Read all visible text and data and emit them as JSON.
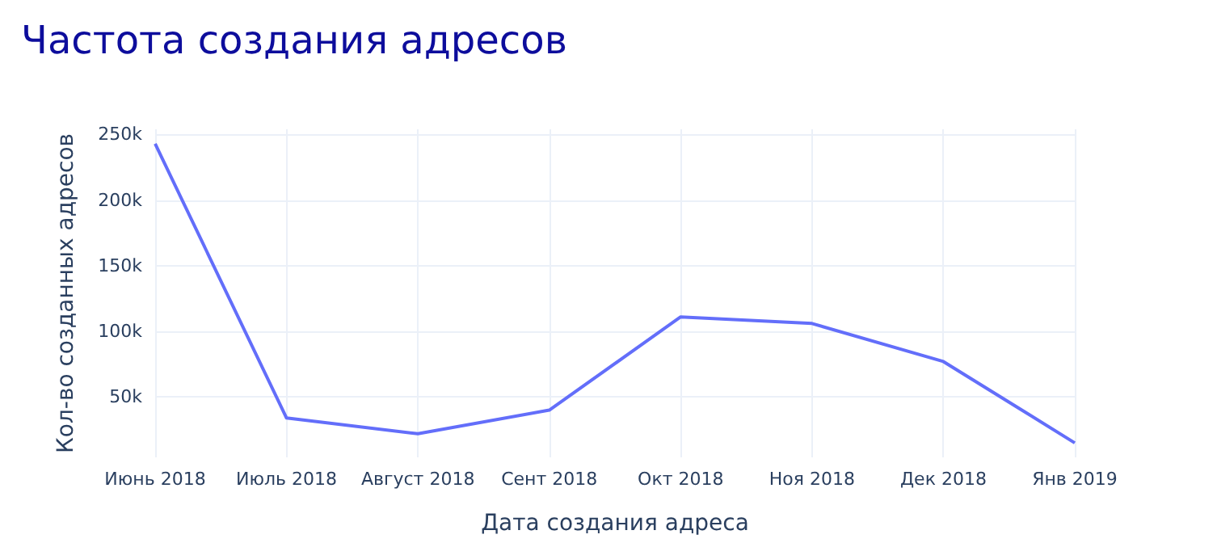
{
  "chart_data": {
    "type": "line",
    "title": "Частота создания адресов",
    "xlabel": "Дата создания адреса",
    "ylabel": "Кол-во созданных адресов",
    "categories": [
      "Июнь 2018",
      "Июль 2018",
      "Август 2018",
      "Сент 2018",
      "Окт 2018",
      "Ноя 2018",
      "Дек 2018",
      "Янв 2019"
    ],
    "series": [
      {
        "color": "#636efa",
        "values": [
          243,
          34,
          22,
          40,
          111,
          106,
          77,
          15
        ]
      }
    ],
    "ylim": [
      4,
      254
    ],
    "yticks": [
      {
        "value": 50,
        "label": "50k"
      },
      {
        "value": 100,
        "label": "100k"
      },
      {
        "value": 150,
        "label": "150k"
      },
      {
        "value": 200,
        "label": "200k"
      },
      {
        "value": 250,
        "label": "250k"
      }
    ],
    "grid": true,
    "marker": "none",
    "line_style": "solid"
  }
}
